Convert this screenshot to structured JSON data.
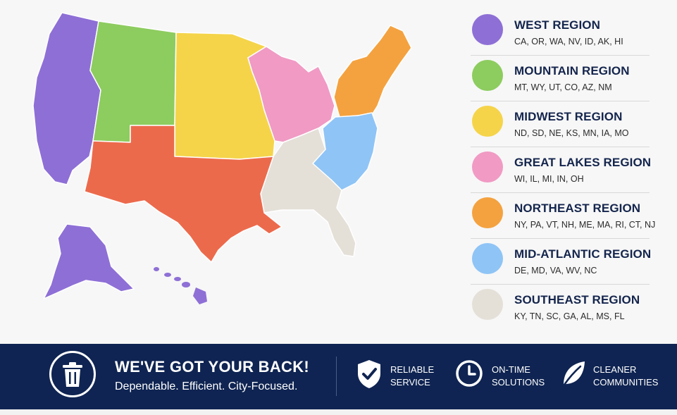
{
  "regions": [
    {
      "id": "west",
      "name": "WEST REGION",
      "states": "CA, OR, WA, NV, ID, AK, HI",
      "color": "#8e6fd6"
    },
    {
      "id": "mountain",
      "name": "MOUNTAIN REGION",
      "states": "MT, WY, UT, CO, AZ, NM",
      "color": "#8dcc5f"
    },
    {
      "id": "midwest",
      "name": "MIDWEST REGION",
      "states": "ND, SD, NE, KS, MN, IA, MO",
      "color": "#f5d44a"
    },
    {
      "id": "great-lakes",
      "name": "GREAT LAKES REGION",
      "states": "WI, IL, MI, IN, OH",
      "color": "#f09ac4"
    },
    {
      "id": "northeast",
      "name": "NORTHEAST REGION",
      "states": "NY, PA, VT, NH, ME, MA, RI, CT, NJ",
      "color": "#f4a23f"
    },
    {
      "id": "mid-atlantic",
      "name": "MID-ATLANTIC REGION",
      "states": "DE, MD, VA, WV, NC",
      "color": "#8fc4f6"
    },
    {
      "id": "southeast",
      "name": "SOUTHEAST REGION",
      "states": "KY, TN, SC, GA, AL, MS, FL",
      "color": "#e4e0d8"
    }
  ],
  "extra_colors": {
    "south_central": "#ec6a4c"
  },
  "banner": {
    "headline": "WE'VE GOT YOUR BACK!",
    "tagline": "Dependable.  Efficient.  City-Focused.",
    "background": "#0f2452",
    "features": [
      {
        "icon": "shield-check-icon",
        "line1": "RELIABLE",
        "line2": "SERVICE"
      },
      {
        "icon": "clock-icon",
        "line1": "ON-TIME",
        "line2": "SOLUTIONS"
      },
      {
        "icon": "leaf-icon",
        "line1": "CLEANER",
        "line2": "COMMUNITIES"
      }
    ]
  }
}
